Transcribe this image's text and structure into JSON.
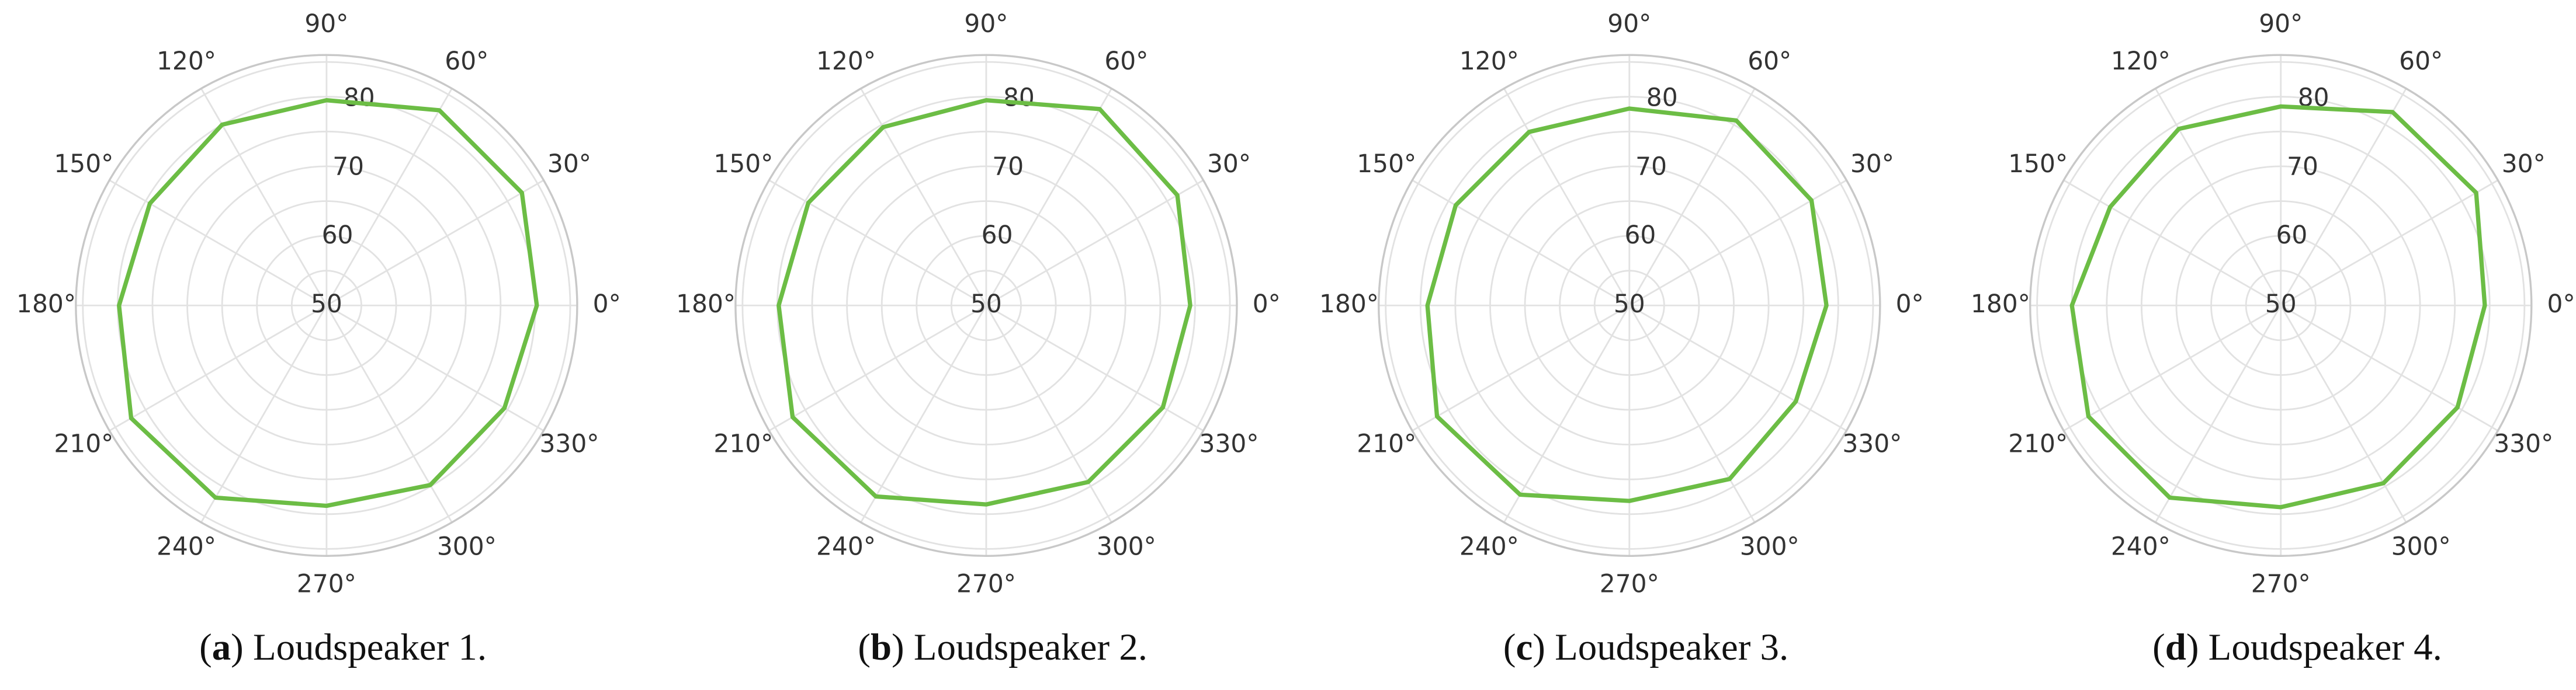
{
  "chart_data": [
    {
      "type": "polar",
      "caption": {
        "open": "(",
        "label": "a",
        "text": ") Loudspeaker 1."
      },
      "xticks": [
        {
          "value": 0,
          "label": "0°"
        },
        {
          "value": 30,
          "label": "30°"
        },
        {
          "value": 60,
          "label": "60°"
        },
        {
          "value": 90,
          "label": "90°"
        },
        {
          "value": 120,
          "label": "120°"
        },
        {
          "value": 150,
          "label": "150°"
        },
        {
          "value": 180,
          "label": "180°"
        },
        {
          "value": 210,
          "label": "210°"
        },
        {
          "value": 240,
          "label": "240°"
        },
        {
          "value": 270,
          "label": "270°"
        },
        {
          "value": 300,
          "label": "300°"
        },
        {
          "value": 330,
          "label": "330°"
        }
      ],
      "ylim": [
        50,
        86
      ],
      "yticks": [
        50,
        60,
        70,
        80
      ],
      "minor_yticks": [
        55,
        65,
        75,
        85
      ],
      "grid": true,
      "series": [
        {
          "color": "#6cbd45",
          "x": [
            0,
            30,
            60,
            90,
            120,
            150,
            180,
            210,
            240,
            270,
            300,
            330
          ],
          "values": [
            80.2,
            82.4,
            82.4,
            79.5,
            80,
            79.3,
            79.8,
            82.4,
            81.9,
            78.8,
            79.8,
            79.5
          ]
        }
      ]
    },
    {
      "type": "polar",
      "caption": {
        "open": "(",
        "label": "b",
        "text": ") Loudspeaker 2."
      },
      "xticks": [
        {
          "value": 0,
          "label": "0°"
        },
        {
          "value": 30,
          "label": "30°"
        },
        {
          "value": 60,
          "label": "60°"
        },
        {
          "value": 90,
          "label": "90°"
        },
        {
          "value": 120,
          "label": "120°"
        },
        {
          "value": 150,
          "label": "150°"
        },
        {
          "value": 180,
          "label": "180°"
        },
        {
          "value": 210,
          "label": "210°"
        },
        {
          "value": 240,
          "label": "240°"
        },
        {
          "value": 270,
          "label": "270°"
        },
        {
          "value": 300,
          "label": "300°"
        },
        {
          "value": 330,
          "label": "330°"
        }
      ],
      "ylim": [
        50,
        86
      ],
      "yticks": [
        50,
        60,
        70,
        80
      ],
      "minor_yticks": [
        55,
        65,
        75,
        85
      ],
      "grid": true,
      "series": [
        {
          "color": "#6cbd45",
          "x": [
            0,
            30,
            60,
            90,
            120,
            150,
            180,
            210,
            240,
            270,
            300,
            330
          ],
          "values": [
            79.3,
            81.7,
            82.6,
            79.5,
            79.6,
            79.5,
            79.8,
            82.1,
            81.7,
            78.6,
            79.3,
            79.3
          ]
        }
      ]
    },
    {
      "type": "polar",
      "caption": {
        "open": "(",
        "label": "c",
        "text": ") Loudspeaker 3."
      },
      "xticks": [
        {
          "value": 0,
          "label": "0°"
        },
        {
          "value": 30,
          "label": "30°"
        },
        {
          "value": 60,
          "label": "60°"
        },
        {
          "value": 90,
          "label": "90°"
        },
        {
          "value": 120,
          "label": "120°"
        },
        {
          "value": 150,
          "label": "150°"
        },
        {
          "value": 180,
          "label": "180°"
        },
        {
          "value": 210,
          "label": "210°"
        },
        {
          "value": 240,
          "label": "240°"
        },
        {
          "value": 270,
          "label": "270°"
        },
        {
          "value": 300,
          "label": "300°"
        },
        {
          "value": 330,
          "label": "330°"
        }
      ],
      "ylim": [
        50,
        86
      ],
      "yticks": [
        50,
        60,
        70,
        80
      ],
      "minor_yticks": [
        55,
        65,
        75,
        85
      ],
      "grid": true,
      "series": [
        {
          "color": "#6cbd45",
          "x": [
            0,
            30,
            60,
            90,
            120,
            150,
            180,
            210,
            240,
            270,
            300,
            330
          ],
          "values": [
            78.3,
            80.2,
            80.7,
            78.3,
            78.8,
            78.8,
            79,
            81.9,
            81.4,
            78.1,
            78.8,
            77.6
          ]
        }
      ]
    },
    {
      "type": "polar",
      "caption": {
        "open": "(",
        "label": "d",
        "text": ") Loudspeaker 4."
      },
      "xticks": [
        {
          "value": 0,
          "label": "0°"
        },
        {
          "value": 30,
          "label": "30°"
        },
        {
          "value": 60,
          "label": "60°"
        },
        {
          "value": 90,
          "label": "90°"
        },
        {
          "value": 120,
          "label": "120°"
        },
        {
          "value": 150,
          "label": "150°"
        },
        {
          "value": 180,
          "label": "180°"
        },
        {
          "value": 210,
          "label": "210°"
        },
        {
          "value": 240,
          "label": "240°"
        },
        {
          "value": 270,
          "label": "270°"
        },
        {
          "value": 300,
          "label": "300°"
        },
        {
          "value": 330,
          "label": "330°"
        }
      ],
      "ylim": [
        50,
        86
      ],
      "yticks": [
        50,
        60,
        70,
        80
      ],
      "minor_yticks": [
        55,
        65,
        75,
        85
      ],
      "grid": true,
      "series": [
        {
          "color": "#6cbd45",
          "x": [
            0,
            30,
            60,
            90,
            120,
            150,
            180,
            210,
            240,
            270,
            300,
            330
          ],
          "values": [
            79.3,
            82.4,
            82.1,
            78.6,
            79.3,
            78.3,
            80,
            81.9,
            81.9,
            79,
            79.5,
            79.3
          ]
        }
      ]
    }
  ]
}
